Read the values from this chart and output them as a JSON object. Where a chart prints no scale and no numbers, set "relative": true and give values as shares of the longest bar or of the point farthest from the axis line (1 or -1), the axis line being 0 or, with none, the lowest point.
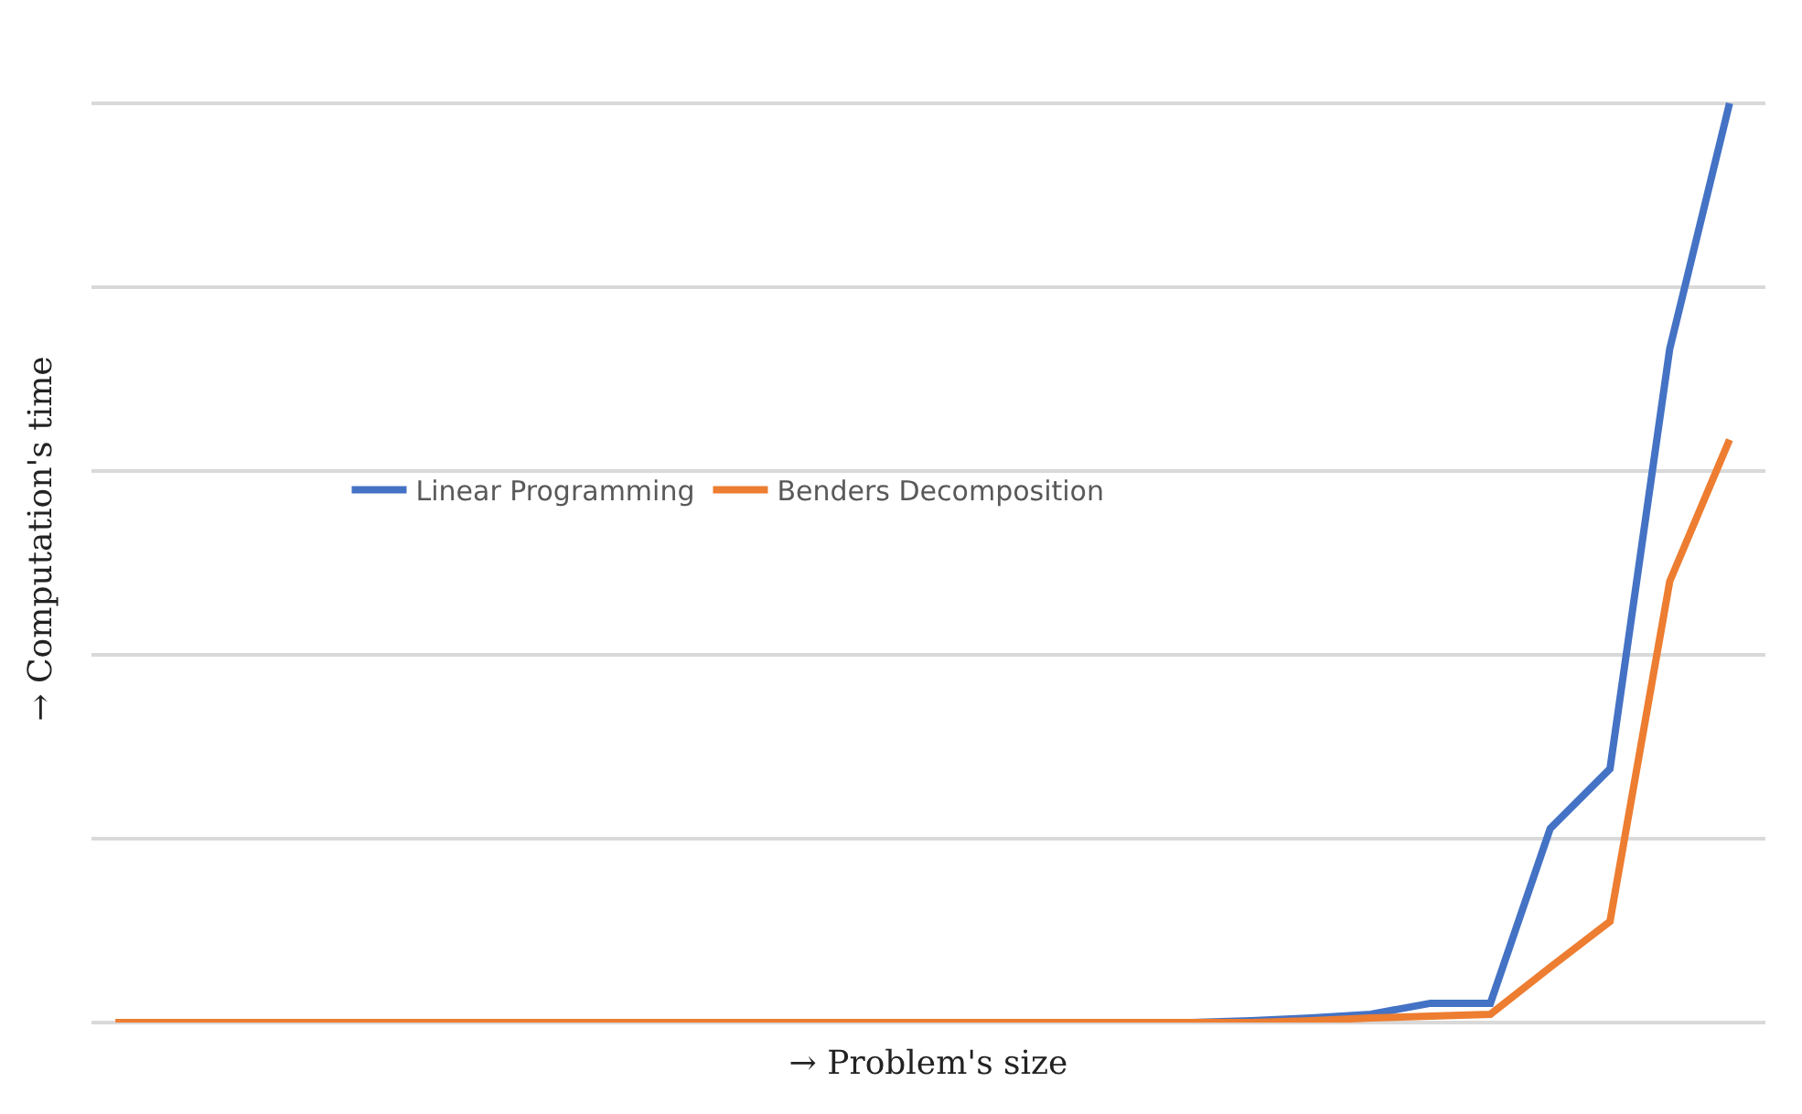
{
  "chart_data": {
    "type": "line",
    "relative": true,
    "xlabel": "→ Problem's size",
    "ylabel": "→ Computation's time",
    "categories": [
      null,
      null,
      null,
      null,
      null,
      null,
      null,
      null,
      null,
      null,
      null,
      null,
      null,
      null,
      null,
      null,
      null,
      null,
      null,
      null,
      null,
      null,
      null,
      null,
      null,
      null,
      null,
      null
    ],
    "series": [
      {
        "name": "Linear Programming",
        "color": "#4472c4",
        "values": [
          null,
          null,
          null,
          null,
          null,
          null,
          null,
          null,
          null,
          null,
          null,
          null,
          null,
          null,
          null,
          null,
          null,
          null,
          0,
          0.002,
          0.005,
          0.009,
          0.021,
          0.021,
          0.211,
          0.276,
          0.733,
          1
        ]
      },
      {
        "name": "Benders Decomposition",
        "color": "#ed7d31",
        "values": [
          0,
          0,
          0,
          0,
          0,
          0,
          0,
          0,
          0,
          0,
          0,
          0,
          0,
          0,
          0,
          0,
          0,
          0,
          0,
          0,
          0.002,
          0.005,
          0.007,
          0.009,
          0.06,
          0.11,
          0.48,
          0.634
        ]
      }
    ],
    "grid": "y",
    "legend": "left",
    "marker": "none",
    "line_style": "solid"
  }
}
